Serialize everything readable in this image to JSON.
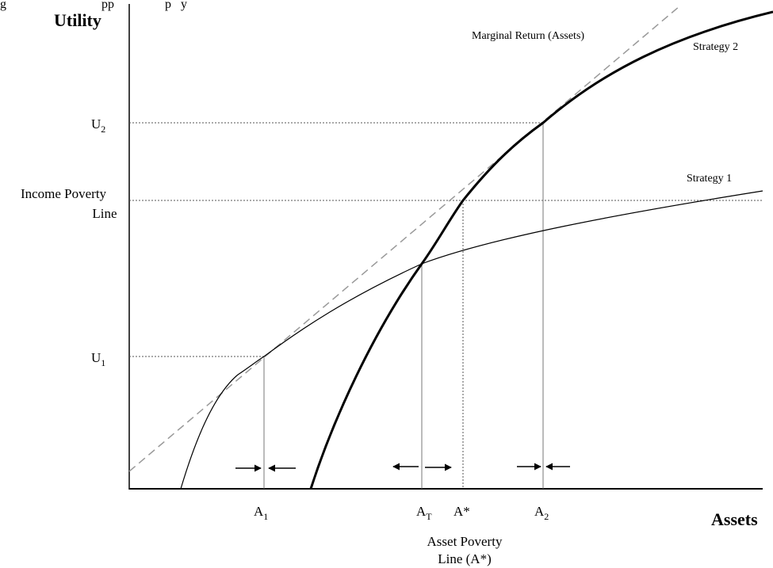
{
  "axes": {
    "y_title": "Utility",
    "x_title": "Assets"
  },
  "y_ticks": {
    "u2": {
      "main": "U",
      "sub": "2"
    },
    "u1": {
      "main": "U",
      "sub": "1"
    },
    "income_poverty_line": [
      "Income Poverty",
      "Line"
    ]
  },
  "x_ticks": {
    "a1": {
      "main": "A",
      "sub": "1"
    },
    "at": {
      "main": "A",
      "sub": "T"
    },
    "astar": "A*",
    "a2": {
      "main": "A",
      "sub": "2"
    },
    "asset_poverty_line": [
      "Asset Poverty",
      "Line (A*)"
    ]
  },
  "curve_labels": {
    "marginal_return": "Marginal Return (Assets)",
    "strategy_2": "Strategy 2",
    "strategy_1": "Strategy 1"
  },
  "top_caption_fragment": "g                              pp                p   y"
}
